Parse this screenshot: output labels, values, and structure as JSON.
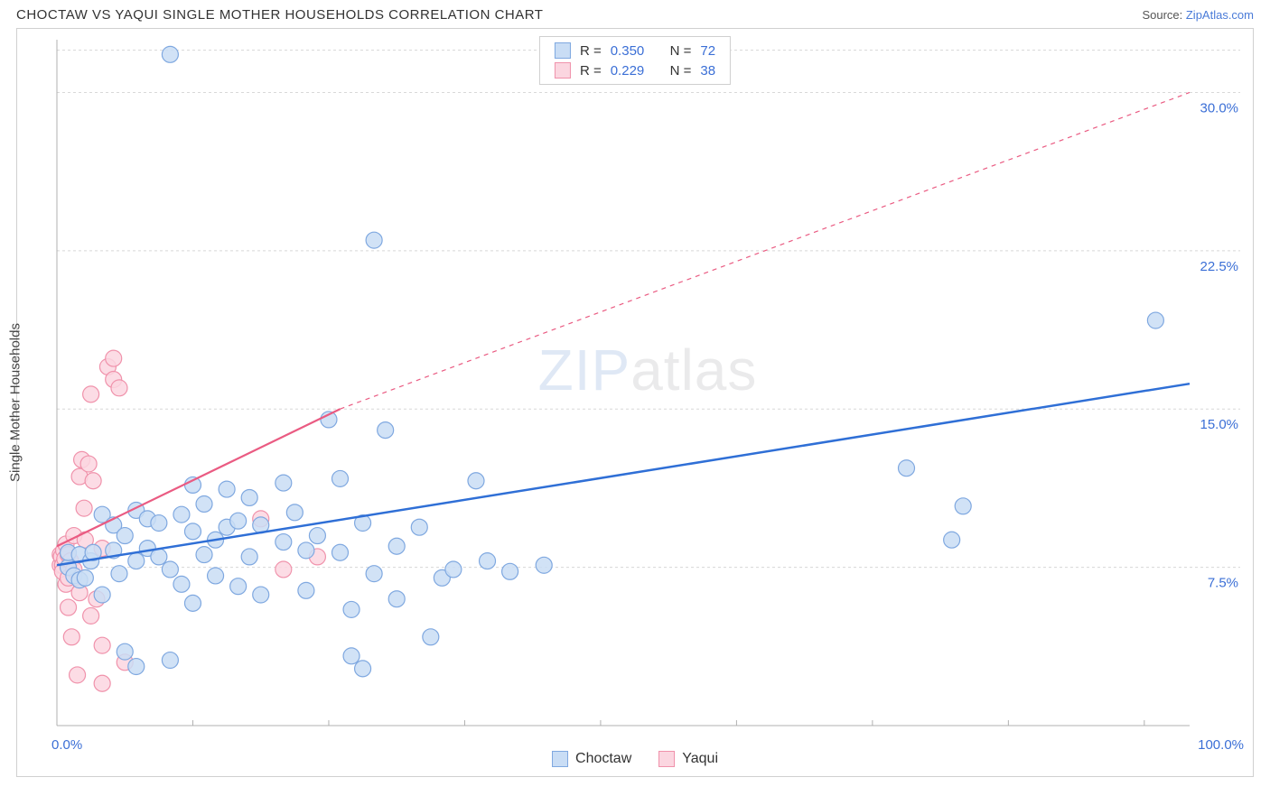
{
  "header": {
    "title": "CHOCTAW VS YAQUI SINGLE MOTHER HOUSEHOLDS CORRELATION CHART",
    "source_prefix": "Source: ",
    "source_link": "ZipAtlas.com"
  },
  "ylabel": "Single Mother Households",
  "watermark": {
    "bold": "ZIP",
    "thin": "atlas"
  },
  "chart": {
    "type": "scatter",
    "xlim": [
      0,
      100
    ],
    "ylim": [
      0,
      32.5
    ],
    "x_label_min": "0.0%",
    "x_label_max": "100.0%",
    "y_gridlines": [
      7.5,
      15.0,
      22.5,
      30.0,
      32.0
    ],
    "y_gridline_labels": [
      "7.5%",
      "15.0%",
      "22.5%",
      "30.0%",
      ""
    ],
    "x_ticks": [
      0,
      12,
      24,
      36,
      48,
      60,
      72,
      84,
      96
    ],
    "grid_color": "#d8d8d8",
    "axis_color": "#b0b0b0",
    "background_color": "#ffffff",
    "label_color": "#3b6fd6",
    "series": [
      {
        "name": "Choctaw",
        "marker_fill": "#c9ddf5",
        "marker_stroke": "#7fa8e0",
        "marker_r": 9,
        "line_color": "#2f6fd6",
        "line_width": 2.5,
        "dash": "none",
        "trend": {
          "x1": 0,
          "y1": 7.6,
          "x2": 100,
          "y2": 16.2
        },
        "R": "0.350",
        "N": "72",
        "points": [
          [
            1,
            7.5
          ],
          [
            1,
            8.2
          ],
          [
            1.5,
            7.1
          ],
          [
            2,
            6.9
          ],
          [
            2,
            8.1
          ],
          [
            2.5,
            7.0
          ],
          [
            3,
            7.8
          ],
          [
            3.2,
            8.2
          ],
          [
            4,
            10.0
          ],
          [
            4,
            6.2
          ],
          [
            5,
            9.5
          ],
          [
            5,
            8.3
          ],
          [
            5.5,
            7.2
          ],
          [
            6,
            9.0
          ],
          [
            6,
            3.5
          ],
          [
            7,
            10.2
          ],
          [
            7,
            7.8
          ],
          [
            7,
            2.8
          ],
          [
            8,
            8.4
          ],
          [
            8,
            9.8
          ],
          [
            9,
            8.0
          ],
          [
            9,
            9.6
          ],
          [
            10,
            31.8
          ],
          [
            10,
            7.4
          ],
          [
            10,
            3.1
          ],
          [
            11,
            10.0
          ],
          [
            11,
            6.7
          ],
          [
            12,
            9.2
          ],
          [
            12,
            11.4
          ],
          [
            12,
            5.8
          ],
          [
            13,
            8.1
          ],
          [
            13,
            10.5
          ],
          [
            14,
            8.8
          ],
          [
            14,
            7.1
          ],
          [
            15,
            9.4
          ],
          [
            15,
            11.2
          ],
          [
            16,
            9.7
          ],
          [
            16,
            6.6
          ],
          [
            17,
            8.0
          ],
          [
            17,
            10.8
          ],
          [
            18,
            6.2
          ],
          [
            18,
            9.5
          ],
          [
            20,
            8.7
          ],
          [
            20,
            11.5
          ],
          [
            21,
            10.1
          ],
          [
            22,
            6.4
          ],
          [
            22,
            8.3
          ],
          [
            23,
            9.0
          ],
          [
            24,
            14.5
          ],
          [
            25,
            8.2
          ],
          [
            25,
            11.7
          ],
          [
            26,
            3.3
          ],
          [
            26,
            5.5
          ],
          [
            27,
            2.7
          ],
          [
            27,
            9.6
          ],
          [
            28,
            7.2
          ],
          [
            28,
            23.0
          ],
          [
            29,
            14.0
          ],
          [
            30,
            8.5
          ],
          [
            30,
            6.0
          ],
          [
            32,
            9.4
          ],
          [
            33,
            4.2
          ],
          [
            34,
            7.0
          ],
          [
            35,
            7.4
          ],
          [
            37,
            11.6
          ],
          [
            38,
            7.8
          ],
          [
            40,
            7.3
          ],
          [
            43,
            7.6
          ],
          [
            75,
            12.2
          ],
          [
            79,
            8.8
          ],
          [
            80,
            10.4
          ],
          [
            97,
            19.2
          ]
        ]
      },
      {
        "name": "Yaqui",
        "marker_fill": "#fbd6e0",
        "marker_stroke": "#f092ab",
        "marker_r": 9,
        "line_color": "#ea5b82",
        "line_width": 2.2,
        "dash": "none",
        "trend": {
          "x1": 0,
          "y1": 8.5,
          "x2": 25,
          "y2": 15.0
        },
        "extrapolate": {
          "x1": 25,
          "y1": 15.0,
          "x2": 100,
          "y2": 30.0,
          "dash": "5,5",
          "width": 1.2
        },
        "R": "0.229",
        "N": "38",
        "points": [
          [
            0.3,
            7.6
          ],
          [
            0.3,
            8.1
          ],
          [
            0.4,
            8.0
          ],
          [
            0.5,
            7.6
          ],
          [
            0.5,
            7.3
          ],
          [
            0.6,
            8.3
          ],
          [
            0.7,
            7.9
          ],
          [
            0.8,
            6.7
          ],
          [
            0.8,
            8.6
          ],
          [
            1,
            8.1
          ],
          [
            1,
            7.0
          ],
          [
            1,
            5.6
          ],
          [
            1.2,
            7.8
          ],
          [
            1.3,
            4.2
          ],
          [
            1.5,
            7.4
          ],
          [
            1.5,
            9.0
          ],
          [
            1.8,
            2.4
          ],
          [
            2,
            11.8
          ],
          [
            2,
            6.3
          ],
          [
            2.2,
            12.6
          ],
          [
            2.4,
            10.3
          ],
          [
            2.5,
            8.8
          ],
          [
            2.8,
            12.4
          ],
          [
            3,
            15.7
          ],
          [
            3,
            5.2
          ],
          [
            3.2,
            11.6
          ],
          [
            3.5,
            6.0
          ],
          [
            4,
            2.0
          ],
          [
            4,
            3.8
          ],
          [
            4,
            8.4
          ],
          [
            4.5,
            17.0
          ],
          [
            5,
            16.4
          ],
          [
            5,
            17.4
          ],
          [
            5.5,
            16.0
          ],
          [
            6,
            3.0
          ],
          [
            18,
            9.8
          ],
          [
            20,
            7.4
          ],
          [
            23,
            8.0
          ]
        ]
      }
    ]
  },
  "legend_top": {
    "rows": [
      {
        "swatch_fill": "#c9ddf5",
        "swatch_stroke": "#7fa8e0",
        "R_label": "R =",
        "R": "0.350",
        "N_label": "N =",
        "N": "72"
      },
      {
        "swatch_fill": "#fbd6e0",
        "swatch_stroke": "#f092ab",
        "R_label": "R =",
        "R": "0.229",
        "N_label": "N =",
        "N": "38"
      }
    ]
  },
  "legend_bottom": {
    "items": [
      {
        "swatch_fill": "#c9ddf5",
        "swatch_stroke": "#7fa8e0",
        "label": "Choctaw"
      },
      {
        "swatch_fill": "#fbd6e0",
        "swatch_stroke": "#f092ab",
        "label": "Yaqui"
      }
    ]
  }
}
